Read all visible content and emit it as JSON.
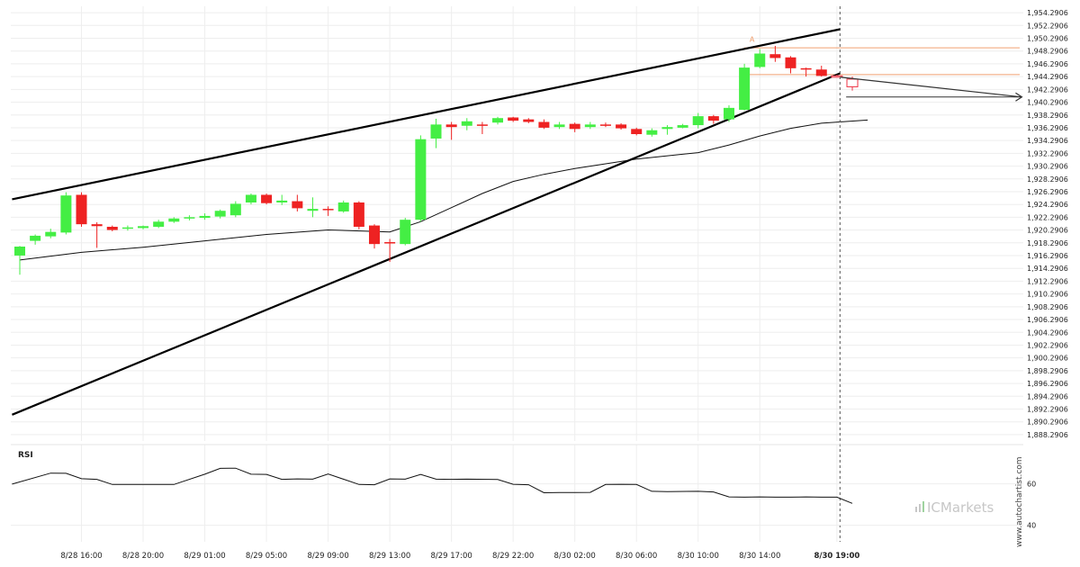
{
  "chart_data": {
    "type": "candlestick",
    "price_axis": {
      "ylim": [
        1887.2906,
        1955.2906
      ],
      "ticks": [
        "1,954.2906",
        "1,952.2906",
        "1,950.2906",
        "1,948.2906",
        "1,946.2906",
        "1,944.2906",
        "1,942.2906",
        "1,940.2906",
        "1,938.2906",
        "1,936.2906",
        "1,934.2906",
        "1,932.2906",
        "1,930.2906",
        "1,928.2906",
        "1,926.2906",
        "1,924.2906",
        "1,922.2906",
        "1,920.2906",
        "1,918.2906",
        "1,916.2906",
        "1,914.2906",
        "1,912.2906",
        "1,910.2906",
        "1,908.2906",
        "1,906.2906",
        "1,904.2906",
        "1,902.2906",
        "1,900.2906",
        "1,898.2906",
        "1,896.2906",
        "1,894.2906",
        "1,892.2906",
        "1,890.2906",
        "1,888.2906"
      ],
      "tick_values": [
        1954.2906,
        1952.2906,
        1950.2906,
        1948.2906,
        1946.2906,
        1944.2906,
        1942.2906,
        1940.2906,
        1938.2906,
        1936.2906,
        1934.2906,
        1932.2906,
        1930.2906,
        1928.2906,
        1926.2906,
        1924.2906,
        1922.2906,
        1920.2906,
        1918.2906,
        1916.2906,
        1914.2906,
        1912.2906,
        1910.2906,
        1908.2906,
        1906.2906,
        1904.2906,
        1902.2906,
        1900.2906,
        1898.2906,
        1896.2906,
        1894.2906,
        1892.2906,
        1890.2906,
        1888.2906
      ],
      "grid": true
    },
    "x_axis": {
      "labels": [
        "8/28 16:00",
        "8/28 20:00",
        "8/29 01:00",
        "8/29 05:00",
        "8/29 09:00",
        "8/29 13:00",
        "8/29 17:00",
        "8/29 22:00",
        "8/30 02:00",
        "8/30 06:00",
        "8/30 10:00",
        "8/30 14:00",
        "8/30 19:00"
      ],
      "label_bar_index": [
        4,
        8,
        12,
        16,
        20,
        24,
        28,
        32,
        36,
        40,
        44,
        48,
        53
      ],
      "bold_label": "8/30 19:00",
      "grid": true
    },
    "candles": [
      {
        "o": 1916.3,
        "h": 1917.8,
        "l": 1913.3,
        "c": 1917.7
      },
      {
        "o": 1918.6,
        "h": 1919.6,
        "l": 1918.0,
        "c": 1919.4
      },
      {
        "o": 1919.3,
        "h": 1920.5,
        "l": 1919.0,
        "c": 1920.0
      },
      {
        "o": 1919.9,
        "h": 1926.2,
        "l": 1919.6,
        "c": 1925.7
      },
      {
        "o": 1925.8,
        "h": 1926.2,
        "l": 1920.8,
        "c": 1921.2
      },
      {
        "o": 1921.2,
        "h": 1921.5,
        "l": 1917.5,
        "c": 1920.9
      },
      {
        "o": 1920.8,
        "h": 1921.0,
        "l": 1920.1,
        "c": 1920.3
      },
      {
        "o": 1920.5,
        "h": 1921.0,
        "l": 1920.2,
        "c": 1920.7
      },
      {
        "o": 1920.6,
        "h": 1921.0,
        "l": 1920.4,
        "c": 1920.9
      },
      {
        "o": 1920.8,
        "h": 1921.9,
        "l": 1920.6,
        "c": 1921.6
      },
      {
        "o": 1921.6,
        "h": 1922.3,
        "l": 1921.4,
        "c": 1922.1
      },
      {
        "o": 1922.1,
        "h": 1922.6,
        "l": 1921.8,
        "c": 1922.3
      },
      {
        "o": 1922.2,
        "h": 1922.9,
        "l": 1921.9,
        "c": 1922.5
      },
      {
        "o": 1922.4,
        "h": 1923.5,
        "l": 1922.1,
        "c": 1923.3
      },
      {
        "o": 1922.6,
        "h": 1924.8,
        "l": 1922.3,
        "c": 1924.4
      },
      {
        "o": 1924.6,
        "h": 1926.0,
        "l": 1924.3,
        "c": 1925.8
      },
      {
        "o": 1925.8,
        "h": 1926.0,
        "l": 1924.3,
        "c": 1924.5
      },
      {
        "o": 1924.6,
        "h": 1925.8,
        "l": 1924.2,
        "c": 1924.9
      },
      {
        "o": 1924.8,
        "h": 1925.8,
        "l": 1923.2,
        "c": 1923.7
      },
      {
        "o": 1923.3,
        "h": 1925.4,
        "l": 1922.3,
        "c": 1923.6
      },
      {
        "o": 1923.6,
        "h": 1924.0,
        "l": 1922.5,
        "c": 1923.4
      },
      {
        "o": 1923.2,
        "h": 1924.9,
        "l": 1923.0,
        "c": 1924.6
      },
      {
        "o": 1924.6,
        "h": 1924.8,
        "l": 1920.4,
        "c": 1920.8
      },
      {
        "o": 1921.0,
        "h": 1921.2,
        "l": 1917.4,
        "c": 1918.1
      },
      {
        "o": 1918.4,
        "h": 1918.9,
        "l": 1915.3,
        "c": 1918.2
      },
      {
        "o": 1918.1,
        "h": 1922.2,
        "l": 1917.9,
        "c": 1921.9
      },
      {
        "o": 1921.9,
        "h": 1935.1,
        "l": 1921.6,
        "c": 1934.5
      },
      {
        "o": 1934.6,
        "h": 1937.7,
        "l": 1933.1,
        "c": 1936.8
      },
      {
        "o": 1936.8,
        "h": 1937.2,
        "l": 1934.4,
        "c": 1936.4
      },
      {
        "o": 1936.6,
        "h": 1937.8,
        "l": 1935.9,
        "c": 1937.3
      },
      {
        "o": 1936.8,
        "h": 1937.2,
        "l": 1935.3,
        "c": 1936.6
      },
      {
        "o": 1937.1,
        "h": 1938.0,
        "l": 1936.8,
        "c": 1937.8
      },
      {
        "o": 1937.9,
        "h": 1938.0,
        "l": 1937.2,
        "c": 1937.4
      },
      {
        "o": 1937.6,
        "h": 1937.8,
        "l": 1937.0,
        "c": 1937.2
      },
      {
        "o": 1937.2,
        "h": 1937.6,
        "l": 1936.1,
        "c": 1936.3
      },
      {
        "o": 1936.4,
        "h": 1937.2,
        "l": 1936.1,
        "c": 1936.8
      },
      {
        "o": 1936.9,
        "h": 1937.1,
        "l": 1935.6,
        "c": 1936.1
      },
      {
        "o": 1936.4,
        "h": 1937.2,
        "l": 1936.1,
        "c": 1936.8
      },
      {
        "o": 1936.8,
        "h": 1937.1,
        "l": 1936.4,
        "c": 1936.7
      },
      {
        "o": 1936.8,
        "h": 1937.0,
        "l": 1936.0,
        "c": 1936.2
      },
      {
        "o": 1936.1,
        "h": 1936.3,
        "l": 1935.1,
        "c": 1935.3
      },
      {
        "o": 1935.2,
        "h": 1936.2,
        "l": 1934.9,
        "c": 1935.9
      },
      {
        "o": 1936.1,
        "h": 1936.7,
        "l": 1935.2,
        "c": 1936.4
      },
      {
        "o": 1936.3,
        "h": 1936.9,
        "l": 1936.2,
        "c": 1936.7
      },
      {
        "o": 1936.7,
        "h": 1938.6,
        "l": 1936.2,
        "c": 1938.1
      },
      {
        "o": 1938.1,
        "h": 1938.3,
        "l": 1936.9,
        "c": 1937.4
      },
      {
        "o": 1937.6,
        "h": 1939.8,
        "l": 1937.2,
        "c": 1939.4
      },
      {
        "o": 1939.1,
        "h": 1946.3,
        "l": 1939.0,
        "c": 1945.7
      },
      {
        "o": 1945.8,
        "h": 1948.6,
        "l": 1945.6,
        "c": 1947.9
      },
      {
        "o": 1947.8,
        "h": 1949.1,
        "l": 1946.6,
        "c": 1947.2
      },
      {
        "o": 1947.3,
        "h": 1947.5,
        "l": 1944.8,
        "c": 1945.6
      },
      {
        "o": 1945.6,
        "h": 1945.7,
        "l": 1944.3,
        "c": 1945.4
      },
      {
        "o": 1945.4,
        "h": 1946.0,
        "l": 1944.3,
        "c": 1944.4
      }
    ],
    "moving_average": {
      "bar_index": [
        0,
        4,
        8,
        12,
        16,
        20,
        24,
        26,
        28,
        30,
        32,
        34,
        36,
        40,
        44,
        46,
        48,
        50,
        52,
        55
      ],
      "values": [
        1915.6,
        1916.8,
        1917.6,
        1918.6,
        1919.6,
        1920.3,
        1920.0,
        1921.6,
        1923.8,
        1926.0,
        1927.9,
        1929.0,
        1929.9,
        1931.4,
        1932.4,
        1933.6,
        1935.0,
        1936.2,
        1937.0,
        1937.5
      ]
    },
    "resistance_line": {
      "start": {
        "bar": -0.5,
        "price": 1925.1
      },
      "end": {
        "bar": 53.2,
        "price": 1951.7
      }
    },
    "support_line": {
      "start": {
        "bar": -0.5,
        "price": 1891.4
      },
      "end": {
        "bar": 53.2,
        "price": 1944.8
      }
    },
    "horizontal_levels": [
      1948.8,
      1944.6,
      1941.1
    ],
    "projection": {
      "candles": [
        {
          "o": 1944.4,
          "h": 1944.6,
          "l": 1944.2,
          "c": 1944.3
        },
        {
          "o": 1943.9,
          "h": 1944.3,
          "l": 1942.1,
          "c": 1942.7
        }
      ],
      "arrow": {
        "start": {
          "bar": 53.2,
          "price": 1944.2
        },
        "end": {
          "bar": 65.0,
          "price": 1941.1
        }
      }
    },
    "current_time_bar": 53.2,
    "pattern_point_label": "A",
    "pattern_point": {
      "bar": 47.5,
      "price": 1949.2
    },
    "rsi": {
      "title": "RSI",
      "ticks": [
        "60",
        "40"
      ],
      "tick_values": [
        60,
        40
      ],
      "ylim": [
        32,
        79
      ],
      "bar_index": [
        -0.5,
        2,
        3,
        4,
        5,
        6,
        8,
        9,
        10,
        12,
        13,
        14,
        15,
        16,
        17,
        18,
        19,
        20,
        22,
        23,
        24,
        25,
        26,
        27,
        28,
        29,
        31,
        32,
        33,
        34,
        35,
        36,
        37,
        38,
        39,
        40,
        41,
        42,
        44,
        45,
        46,
        47,
        48,
        49,
        50,
        51,
        52,
        53,
        54
      ],
      "values": [
        59.9,
        65.2,
        65.1,
        62.5,
        62.2,
        59.7,
        59.7,
        59.7,
        59.7,
        64.7,
        67.5,
        67.6,
        64.7,
        64.6,
        62.2,
        62.4,
        62.3,
        64.8,
        59.7,
        59.6,
        62.4,
        62.3,
        64.6,
        62.3,
        62.2,
        62.3,
        62.1,
        59.8,
        59.6,
        55.7,
        55.8,
        55.8,
        55.9,
        59.7,
        59.8,
        59.7,
        56.4,
        56.3,
        56.4,
        56.1,
        53.7,
        53.6,
        53.7,
        53.6,
        53.6,
        53.7,
        53.6,
        53.6,
        50.6
      ]
    }
  },
  "watermark": {
    "brand": "ICMarkets",
    "site": "www.autochartist.com"
  },
  "colors": {
    "up": "#44ee44",
    "down": "#ee2222",
    "grid": "#eeeeee",
    "trendline": "#000000",
    "level": "#f0a070",
    "ma": "#111111"
  }
}
